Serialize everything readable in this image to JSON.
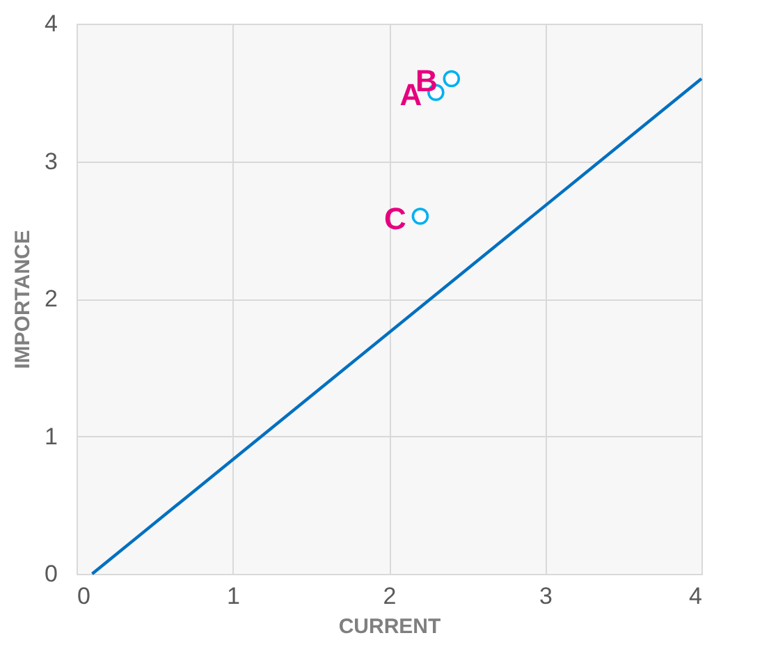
{
  "chart_data": {
    "type": "scatter",
    "xlabel": "CURRENT",
    "ylabel": "IMPORTANCE",
    "xlim": [
      0,
      4
    ],
    "ylim": [
      0,
      4
    ],
    "xticks": [
      0,
      1,
      2,
      3,
      4
    ],
    "yticks": [
      0,
      1,
      2,
      3,
      4
    ],
    "grid": true,
    "marker": "circle",
    "series": [
      {
        "color": "#00b0f0",
        "x": [
          2.3,
          2.4,
          2.2
        ],
        "values": [
          3.5,
          3.6,
          2.6
        ]
      },
      {
        "type": "line",
        "color": "#0070c0",
        "line_style": "solid",
        "marker": "none",
        "x": [
          0.1,
          4
        ],
        "values": [
          0,
          3.6
        ]
      }
    ],
    "annotations": [
      {
        "text": "A",
        "x": 2.3,
        "y": 3.5
      },
      {
        "text": "B",
        "x": 2.4,
        "y": 3.6
      },
      {
        "text": "C",
        "x": 2.2,
        "y": 2.6
      }
    ]
  }
}
